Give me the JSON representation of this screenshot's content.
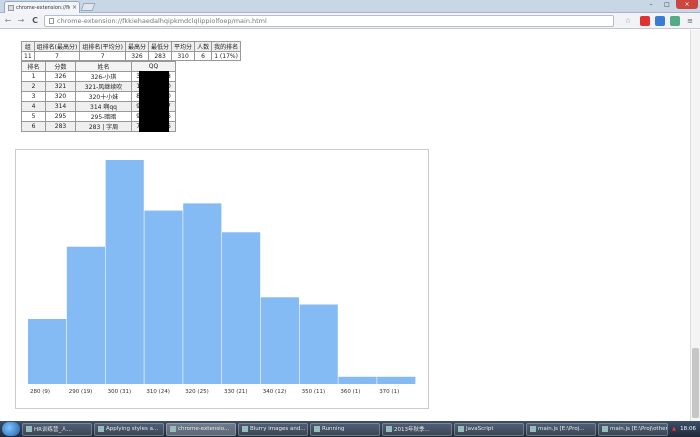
{
  "browser": {
    "tab_title": "chrome-extension://fkkie",
    "tab_close": "×",
    "url": "chrome-extension://fkkiehaedalhqipkmdclqlippiolfoep/main.html",
    "back_glyph": "←",
    "forward_glyph": "→",
    "reload_glyph": "C",
    "star_glyph": "☆",
    "window_controls": {
      "minimize": "–",
      "maximize": "□",
      "close": "×"
    }
  },
  "stats": {
    "headers": [
      "组",
      "组排名(最高分)",
      "组排名(平均分)",
      "最高分",
      "最低分",
      "平均分",
      "人数",
      "我的排名"
    ],
    "values": [
      "11",
      "7",
      "7",
      "326",
      "283",
      "310",
      "6",
      "1 (17%)"
    ]
  },
  "rank": {
    "headers": [
      "排名",
      "分数",
      "姓名",
      "QQ"
    ],
    "rows": [
      [
        "1",
        "326",
        "326-小琪",
        "3█████18"
      ],
      [
        "2",
        "321",
        "321-风继续吹",
        "1█████00"
      ],
      [
        "3",
        "320",
        "320十小妹",
        "8█████70"
      ],
      [
        "4",
        "314",
        "314 啊qq",
        "9█████77"
      ],
      [
        "5",
        "295",
        "295-暗暗",
        "9█████76"
      ],
      [
        "6",
        "283",
        "283 | 字周",
        "7█████36"
      ]
    ]
  },
  "chart_data": {
    "type": "bar",
    "title": "",
    "categories": [
      "280 (9)",
      "290 (19)",
      "300 (31)",
      "310 (24)",
      "320 (25)",
      "330 (21)",
      "340 (12)",
      "350 (11)",
      "360 (1)",
      "370 (1)"
    ],
    "values": [
      9,
      19,
      31,
      24,
      25,
      21,
      12,
      11,
      1,
      1
    ],
    "ylim": [
      0,
      31
    ],
    "bar_color": "#85bbf5",
    "grid": false,
    "xlabel": "",
    "ylabel": ""
  },
  "taskbar": {
    "tasks": [
      "HR训练营_人...",
      "Applying styles a...",
      "chrome-extensio...",
      "Blurry images and...",
      "Running",
      "2013年秋季...",
      "JavaScript",
      "main.js [E:\\Proj...",
      "main.js [E:\\Proj\\other..."
    ],
    "clock": "18:06"
  }
}
